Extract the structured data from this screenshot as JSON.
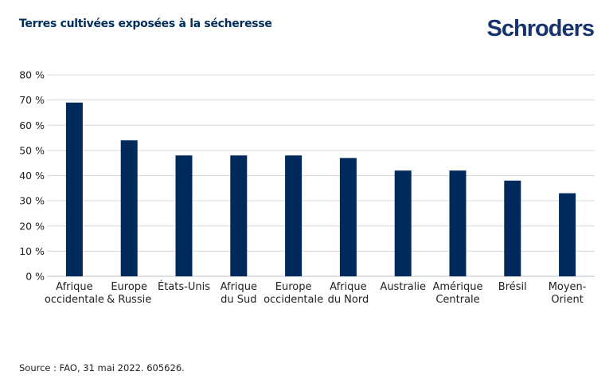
{
  "header": {
    "title": "Terres cultivées exposées à la sécheresse",
    "logo": "Schroders"
  },
  "footer": {
    "source": "Source : FAO, 31 mai 2022. 605626."
  },
  "chart_data": {
    "type": "bar",
    "title": "Terres cultivées exposées à la sécheresse",
    "categories": [
      [
        "Afrique",
        "occidentale"
      ],
      [
        "Europe",
        "& Russie"
      ],
      [
        "États-Unis"
      ],
      [
        "Afrique",
        "du Sud"
      ],
      [
        "Europe",
        "occidentale"
      ],
      [
        "Afrique",
        "du Nord"
      ],
      [
        "Australie"
      ],
      [
        "Amérique",
        "Centrale"
      ],
      [
        "Brésil"
      ],
      [
        "Moyen-",
        "Orient"
      ]
    ],
    "values": [
      69,
      54,
      48,
      48,
      48,
      47,
      42,
      42,
      38,
      33
    ],
    "ylim": [
      0,
      80
    ],
    "yticks": [
      0,
      10,
      20,
      30,
      40,
      50,
      60,
      70,
      80
    ],
    "ytick_labels": [
      "0 %",
      "10 %",
      "20 %",
      "30 %",
      "40 %",
      "50 %",
      "60 %",
      "70 %",
      "80 %"
    ],
    "grid": true,
    "colors": {
      "bar": "#002a5c",
      "grid": "#d9d9d9",
      "title": "#002d5a"
    }
  }
}
